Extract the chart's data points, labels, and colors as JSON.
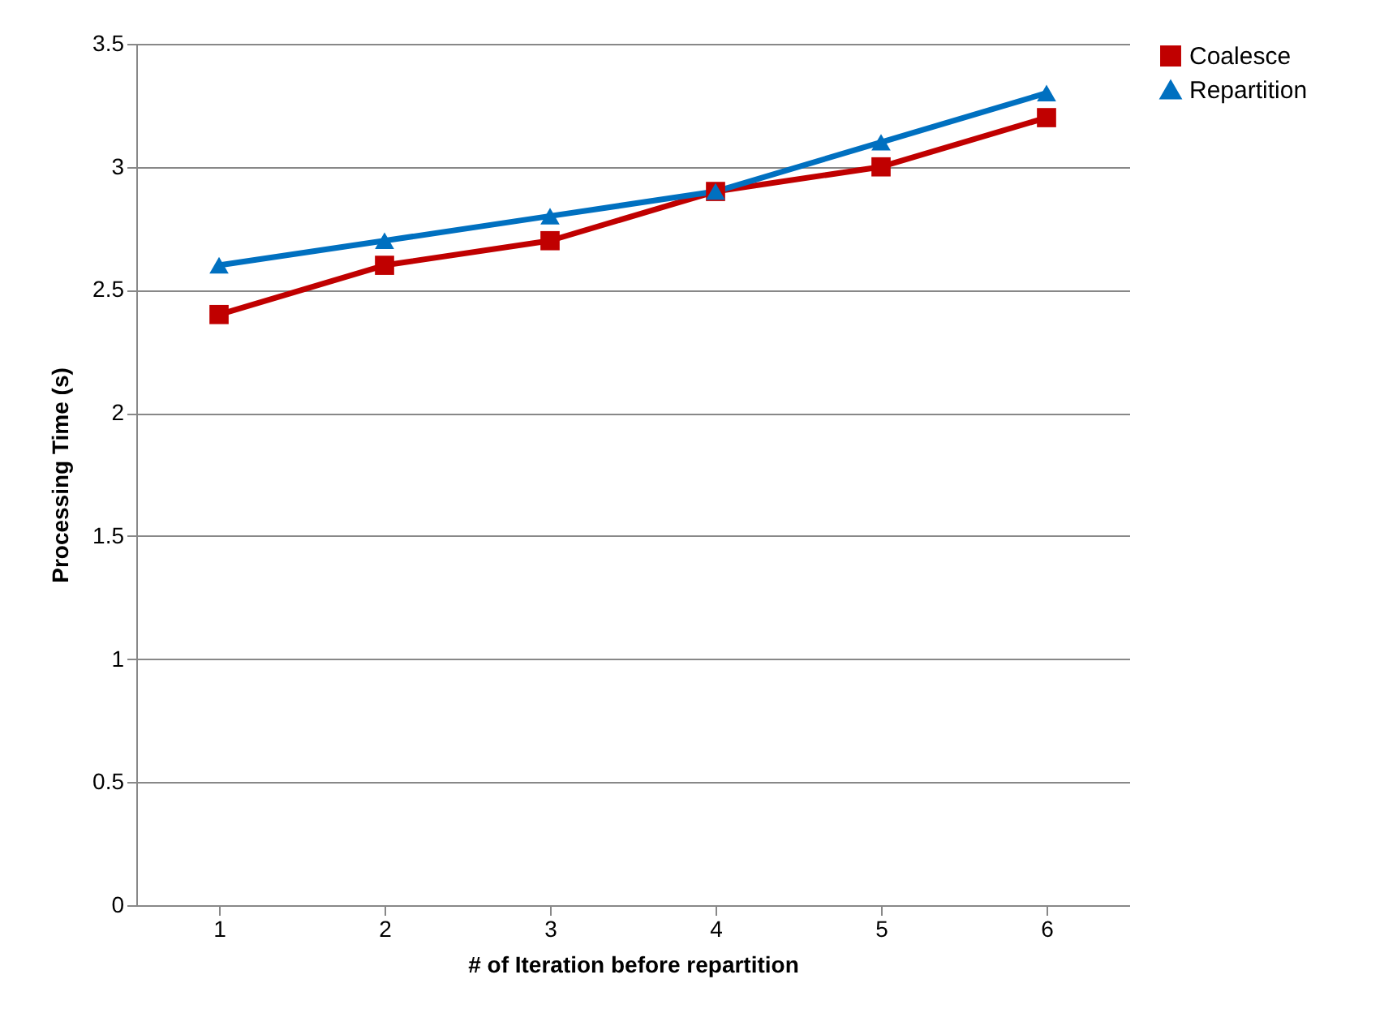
{
  "chart_data": {
    "type": "line",
    "xlabel": "# of Iteration before repartition",
    "ylabel": "Processing Time (s)",
    "categories": [
      "1",
      "2",
      "3",
      "4",
      "5",
      "6"
    ],
    "series": [
      {
        "name": "Coalesce",
        "color": "#c00000",
        "marker": "square",
        "values": [
          2.4,
          2.6,
          2.7,
          2.9,
          3.0,
          3.2
        ]
      },
      {
        "name": "Repartition",
        "color": "#0070c0",
        "marker": "triangle",
        "values": [
          2.6,
          2.7,
          2.8,
          2.9,
          3.1,
          3.3
        ]
      }
    ],
    "ylim": [
      0,
      3.5
    ],
    "yticks": [
      0,
      0.5,
      1,
      1.5,
      2,
      2.5,
      3,
      3.5
    ],
    "grid": "y",
    "legend": "right"
  }
}
